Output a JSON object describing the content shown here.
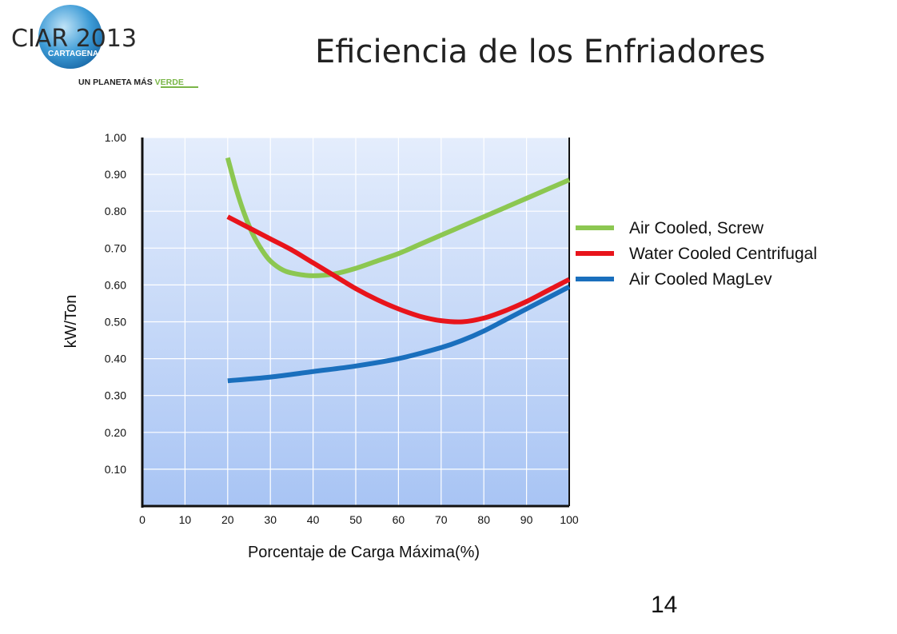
{
  "header": {
    "logo_text": "CIAR 2013",
    "logo_city": "CARTAGENA",
    "logo_tagline_main": "UN PLANETA MÁS ",
    "logo_tagline_green": "VERDE",
    "title": "Eficiencia de los Enfriadores"
  },
  "slide_number": "14",
  "colors": {
    "plot_bg_top": "#e4edfc",
    "plot_bg_bottom": "#a8c4f4",
    "axis": "#111111",
    "grid": "#ffffff"
  },
  "chart_data": {
    "type": "line",
    "title": "",
    "xlabel": "Porcentaje de Carga Máxima(%)",
    "ylabel": "kW/Ton",
    "xlim": [
      0,
      100
    ],
    "ylim": [
      0,
      1.0
    ],
    "x_ticks": [
      "0",
      "10",
      "20",
      "30",
      "40",
      "50",
      "60",
      "70",
      "80",
      "90",
      "100"
    ],
    "y_ticks": [
      "0.10",
      "0.20",
      "0.30",
      "0.40",
      "0.50",
      "0.60",
      "0.70",
      "0.80",
      "0.90",
      "1.00"
    ],
    "grid": true,
    "legend_position": "right",
    "series": [
      {
        "name": "Air Cooled, Screw",
        "color": "#8cc751",
        "x": [
          20,
          22,
          24,
          26,
          28,
          30,
          33,
          36,
          40,
          45,
          50,
          55,
          60,
          65,
          70,
          75,
          80,
          85,
          90,
          95,
          100
        ],
        "y": [
          0.945,
          0.86,
          0.79,
          0.735,
          0.695,
          0.665,
          0.64,
          0.63,
          0.625,
          0.63,
          0.645,
          0.665,
          0.685,
          0.71,
          0.735,
          0.76,
          0.785,
          0.81,
          0.835,
          0.86,
          0.885
        ]
      },
      {
        "name": "Water Cooled Centrifugal",
        "color": "#e8141b",
        "x": [
          20,
          25,
          30,
          35,
          40,
          45,
          50,
          55,
          60,
          65,
          70,
          75,
          80,
          85,
          90,
          95,
          100
        ],
        "y": [
          0.785,
          0.755,
          0.725,
          0.695,
          0.66,
          0.625,
          0.59,
          0.56,
          0.535,
          0.515,
          0.503,
          0.5,
          0.51,
          0.53,
          0.555,
          0.585,
          0.615
        ]
      },
      {
        "name": "Air Cooled MagLev",
        "color": "#1a6fbd",
        "x": [
          20,
          30,
          40,
          50,
          60,
          70,
          75,
          80,
          85,
          90,
          95,
          100
        ],
        "y": [
          0.34,
          0.35,
          0.365,
          0.38,
          0.4,
          0.43,
          0.45,
          0.475,
          0.505,
          0.535,
          0.565,
          0.595
        ]
      }
    ]
  }
}
